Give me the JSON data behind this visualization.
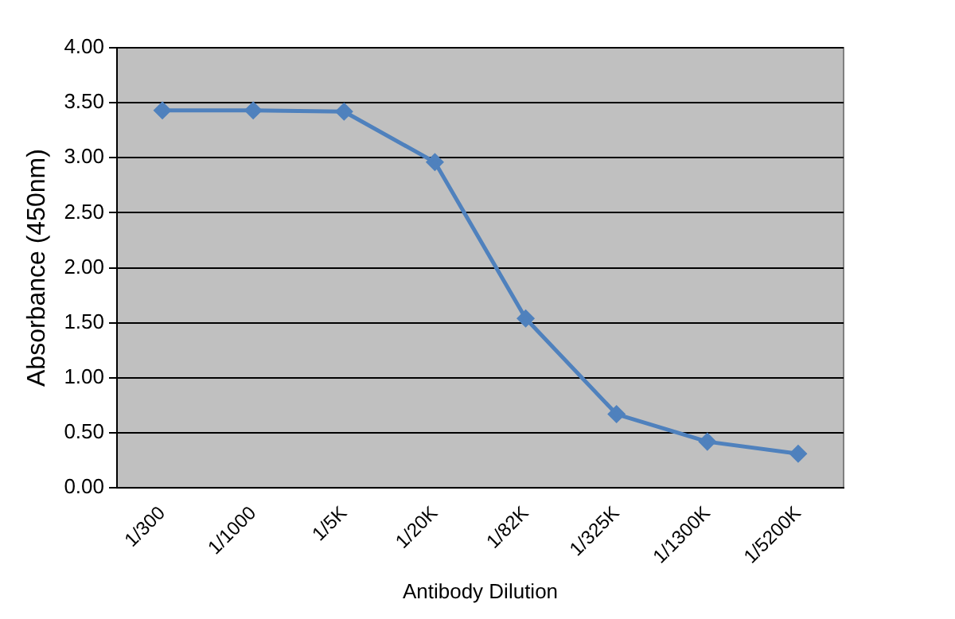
{
  "chart_data": {
    "type": "line",
    "xlabel": "Antibody Dilution",
    "ylabel": "Absorbance (450nm)",
    "categories": [
      "1/300",
      "1/1000",
      "1/5K",
      "1/20K",
      "1/82K",
      "1/325K",
      "1/1300K",
      "1/5200K"
    ],
    "series": [
      {
        "color": "#4f81bd",
        "values": [
          3.43,
          3.43,
          3.42,
          2.96,
          1.54,
          0.67,
          0.42,
          0.31
        ]
      }
    ],
    "ylim": [
      0,
      4
    ],
    "yticks": [
      {
        "value": 0,
        "label": "0.00"
      },
      {
        "value": 0.5,
        "label": "0.50"
      },
      {
        "value": 1,
        "label": "1.00"
      },
      {
        "value": 1.5,
        "label": "1.50"
      },
      {
        "value": 2,
        "label": "2.00"
      },
      {
        "value": 2.5,
        "label": "2.50"
      },
      {
        "value": 3,
        "label": "3.00"
      },
      {
        "value": 3.5,
        "label": "3.50"
      },
      {
        "value": 4,
        "label": "4.00"
      }
    ],
    "grid": "y",
    "legend": false,
    "marker": "diamond",
    "line_style": "solid"
  }
}
